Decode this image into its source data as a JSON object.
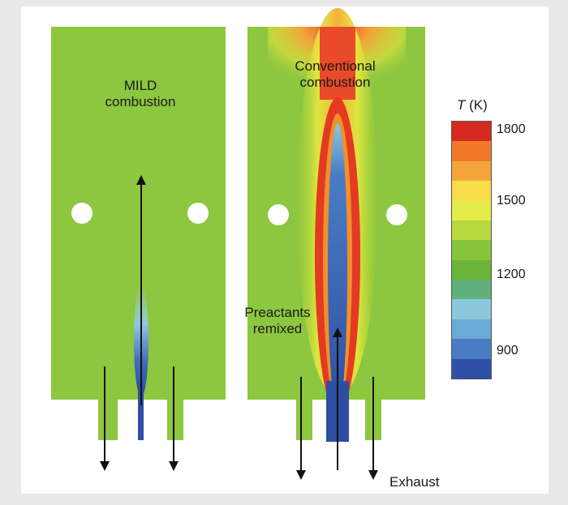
{
  "panels": {
    "mild": {
      "title_line1": "MILD",
      "title_line2": "combustion"
    },
    "conventional": {
      "title_line1": "Conventional",
      "title_line2": "combustion"
    }
  },
  "annotations": {
    "reactants_line1": "Preactants",
    "reactants_line2": "remixed",
    "exhaust": "Exhaust"
  },
  "scale": {
    "title_symbol": "T",
    "title_unit": " (K)",
    "ticks": [
      "1800",
      "1500",
      "1200",
      "900"
    ],
    "colors": [
      "#d42a1f",
      "#f07a2a",
      "#f4a43a",
      "#f8dc4a",
      "#e4ec4a",
      "#b8d93e",
      "#86c43a",
      "#6bb43a",
      "#5fb07a",
      "#8cc8dc",
      "#6aaad8",
      "#4a7cc4",
      "#2f50a6"
    ]
  },
  "colors": {
    "field": "#8dc63f",
    "cold_core": "#2d4fa3",
    "hot_flame": "#e33a22"
  }
}
